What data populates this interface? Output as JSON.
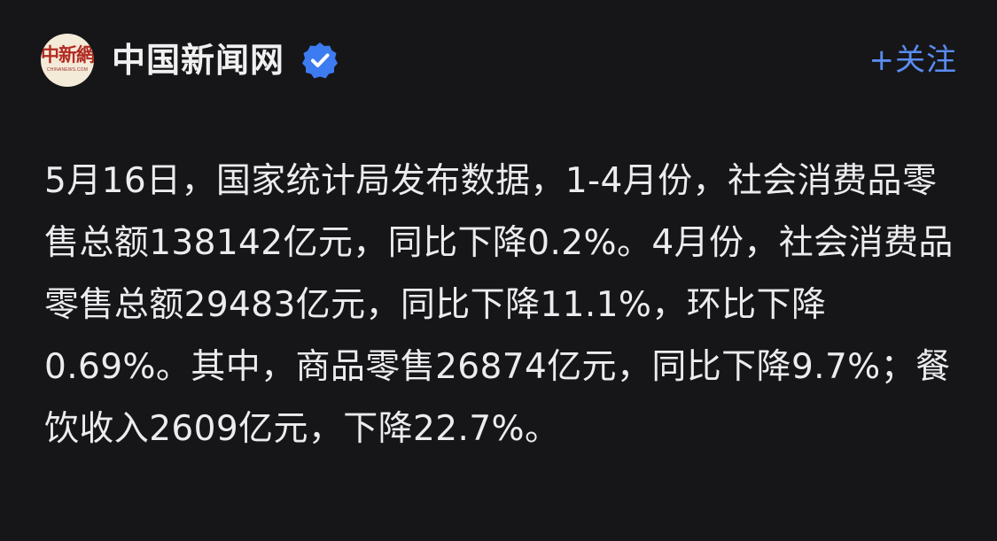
{
  "account": {
    "logo_text": "中新網",
    "logo_subtext": "CHINANEWS.COM",
    "name": "中国新闻网",
    "verified_icon": "verified-check-icon",
    "follow_label": "+关注"
  },
  "post": {
    "text": "5月16日，国家统计局发布数据，1-4月份，社会消费品零售总额138142亿元，同比下降0.2%。4月份，社会消费品零售总额29483亿元，同比下降11.1%，环比下降0.69%。其中，商品零售26874亿元，同比下降9.7%；餐饮收入2609亿元，下降22.7%。"
  },
  "colors": {
    "background": "#161618",
    "text": "#ececee",
    "accent": "#5a8cf2",
    "badge": "#3d7bf0"
  }
}
